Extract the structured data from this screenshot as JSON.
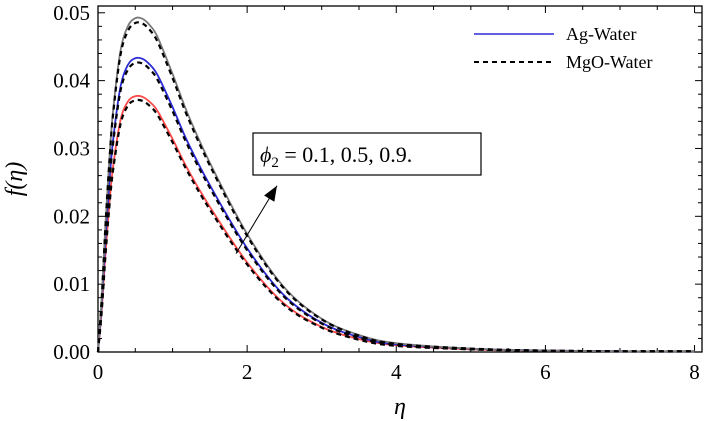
{
  "chart_data": {
    "type": "line",
    "xlabel": "η",
    "ylabel": "f(η)",
    "xlim": [
      0,
      8.1
    ],
    "ylim": [
      0,
      0.051
    ],
    "xticks": [
      0,
      2,
      4,
      6,
      8
    ],
    "xtick_labels": [
      "0",
      "2",
      "4",
      "6",
      "8"
    ],
    "yticks": [
      0.0,
      0.01,
      0.02,
      0.03,
      0.04,
      0.05
    ],
    "ytick_labels": [
      "0.00",
      "0.01",
      "0.02",
      "0.03",
      "0.04",
      "0.05"
    ],
    "legend": {
      "position": "top-right",
      "entries": [
        {
          "label": "Ag-Water",
          "style": "solid",
          "color": "#2b2bd6"
        },
        {
          "label": "MgO-Water",
          "style": "dashed",
          "color": "#000000"
        }
      ]
    },
    "annotation": {
      "text_main": "ϕ",
      "text_sub": "2",
      "text_rest": " = 0.1, 0.5, 0.9.",
      "arrow_from": [
        1.85,
        0.0145
      ],
      "arrow_to": [
        2.4,
        0.0245
      ]
    },
    "x": [
      0,
      0.05,
      0.1,
      0.15,
      0.2,
      0.3,
      0.4,
      0.5,
      0.6,
      0.7,
      0.8,
      1.0,
      1.2,
      1.5,
      2.0,
      2.5,
      3.0,
      3.5,
      4.0,
      5.0,
      6.0,
      7.0,
      8.0
    ],
    "series": [
      {
        "group": "Ag-Water",
        "phi2": "0.1",
        "color": "#ff4a4a",
        "style": "solid",
        "values": [
          0,
          0.0062,
          0.0145,
          0.0215,
          0.0271,
          0.0341,
          0.0369,
          0.0377,
          0.0376,
          0.0368,
          0.0355,
          0.0314,
          0.027,
          0.0214,
          0.0132,
          0.0071,
          0.0037,
          0.0019,
          0.001,
          0.0004,
          0.0002,
          0.0001,
          0.0001
        ]
      },
      {
        "group": "MgO-Water",
        "phi2": "0.1",
        "color": "#000000",
        "style": "dashed",
        "values": [
          0,
          0.006,
          0.0142,
          0.0211,
          0.0266,
          0.0335,
          0.0363,
          0.0371,
          0.037,
          0.0362,
          0.0349,
          0.0309,
          0.0266,
          0.021,
          0.0129,
          0.0069,
          0.0036,
          0.0018,
          0.0009,
          0.0004,
          0.0002,
          0.0001,
          0.0001
        ]
      },
      {
        "group": "Ag-Water",
        "phi2": "0.5",
        "color": "#2b2bd6",
        "style": "solid",
        "values": [
          0,
          0.0071,
          0.0166,
          0.0246,
          0.031,
          0.039,
          0.0423,
          0.0433,
          0.0432,
          0.0423,
          0.0408,
          0.0361,
          0.031,
          0.0246,
          0.0153,
          0.0083,
          0.0043,
          0.0022,
          0.0011,
          0.0005,
          0.0002,
          0.0001,
          0.0001
        ]
      },
      {
        "group": "MgO-Water",
        "phi2": "0.5",
        "color": "#000000",
        "style": "dashed",
        "values": [
          0,
          0.0069,
          0.0163,
          0.0242,
          0.0305,
          0.0384,
          0.0416,
          0.0426,
          0.0425,
          0.0416,
          0.0401,
          0.0355,
          0.0305,
          0.0242,
          0.015,
          0.0081,
          0.0042,
          0.0021,
          0.0011,
          0.0004,
          0.0002,
          0.0001,
          0.0001
        ]
      },
      {
        "group": "Ag-Water",
        "phi2": "0.9",
        "color": "#7a7a7a",
        "style": "solid",
        "values": [
          0,
          0.0081,
          0.0189,
          0.028,
          0.0353,
          0.0443,
          0.048,
          0.0492,
          0.0491,
          0.0481,
          0.0464,
          0.041,
          0.0352,
          0.0279,
          0.0174,
          0.0095,
          0.0049,
          0.0025,
          0.0013,
          0.0005,
          0.0002,
          0.0001,
          0.0001
        ]
      },
      {
        "group": "MgO-Water",
        "phi2": "0.9",
        "color": "#000000",
        "style": "dashed",
        "values": [
          0,
          0.0079,
          0.0186,
          0.0276,
          0.0348,
          0.0437,
          0.0473,
          0.0485,
          0.0484,
          0.0474,
          0.0457,
          0.0404,
          0.0347,
          0.0275,
          0.0171,
          0.0093,
          0.0048,
          0.0024,
          0.0012,
          0.0005,
          0.0002,
          0.0001,
          0.0001
        ]
      }
    ]
  }
}
